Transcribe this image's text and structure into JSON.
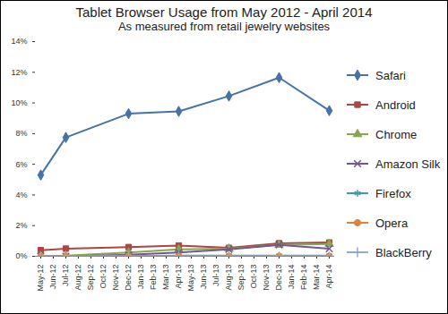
{
  "chart_data": {
    "type": "line",
    "title": "Tablet Browser Usage from May 2012 - April 2014",
    "subtitle": "As measured from retail jewelry websites",
    "x": [
      "May-12",
      "Jun-12",
      "Jul-12",
      "Aug-12",
      "Sep-12",
      "Oct-12",
      "Nov-12",
      "Dec-12",
      "Jan-13",
      "Feb-13",
      "Mar-13",
      "Apr-13",
      "May-13",
      "Jun-13",
      "Jul-13",
      "Aug-13",
      "Sep-13",
      "Oct-13",
      "Nov-13",
      "Dec-13",
      "Jan-14",
      "Feb-14",
      "Mar-14",
      "Apr-14"
    ],
    "series": [
      {
        "name": "Safari",
        "color": "#4572A7",
        "marker": "diamond",
        "values": [
          5.3,
          null,
          7.75,
          null,
          null,
          null,
          null,
          9.3,
          null,
          null,
          null,
          9.45,
          null,
          null,
          null,
          10.45,
          null,
          null,
          null,
          11.65,
          null,
          null,
          null,
          9.5
        ]
      },
      {
        "name": "Android",
        "color": "#AA4643",
        "marker": "square",
        "values": [
          0.4,
          null,
          0.5,
          null,
          null,
          null,
          null,
          0.6,
          null,
          null,
          null,
          0.7,
          null,
          null,
          null,
          0.55,
          null,
          null,
          null,
          0.85,
          null,
          null,
          null,
          0.9
        ]
      },
      {
        "name": "Chrome",
        "color": "#89A54E",
        "marker": "triangle",
        "values": [
          0,
          null,
          0.05,
          null,
          null,
          null,
          null,
          0.25,
          null,
          null,
          null,
          0.45,
          null,
          null,
          null,
          0.5,
          null,
          null,
          null,
          0.75,
          null,
          null,
          null,
          0.8
        ]
      },
      {
        "name": "Amazon Silk",
        "color": "#71588F",
        "marker": "times",
        "values": [
          0,
          null,
          0,
          null,
          null,
          null,
          null,
          0.1,
          null,
          null,
          null,
          0.25,
          null,
          null,
          null,
          0.45,
          null,
          null,
          null,
          0.75,
          null,
          null,
          null,
          0.5
        ]
      },
      {
        "name": "Firefox",
        "color": "#4198AF",
        "marker": "asterisk",
        "values": [
          0,
          null,
          0,
          null,
          null,
          null,
          null,
          0.02,
          null,
          null,
          null,
          0.05,
          null,
          null,
          null,
          0.05,
          null,
          null,
          null,
          0.05,
          null,
          null,
          null,
          0.05
        ]
      },
      {
        "name": "Opera",
        "color": "#DB843D",
        "marker": "circle",
        "values": [
          0,
          null,
          0,
          null,
          null,
          null,
          null,
          0,
          null,
          null,
          null,
          0,
          null,
          null,
          null,
          0,
          null,
          null,
          null,
          0,
          null,
          null,
          null,
          0
        ]
      },
      {
        "name": "BlackBerry",
        "color": "#93A9CF",
        "marker": "plus",
        "values": [
          0,
          null,
          0,
          null,
          null,
          null,
          null,
          0,
          null,
          null,
          null,
          0,
          null,
          null,
          null,
          0,
          null,
          null,
          null,
          0,
          null,
          null,
          null,
          0
        ]
      }
    ],
    "ylim": [
      0,
      14
    ],
    "yticks": [
      {
        "value": 0,
        "label": "0%"
      },
      {
        "value": 2,
        "label": "2%"
      },
      {
        "value": 4,
        "label": "4%"
      },
      {
        "value": 6,
        "label": "6%"
      },
      {
        "value": 8,
        "label": "8%"
      },
      {
        "value": 10,
        "label": "10%"
      },
      {
        "value": 12,
        "label": "12%"
      },
      {
        "value": 14,
        "label": "14%"
      }
    ],
    "grid": false,
    "legend": "right"
  }
}
